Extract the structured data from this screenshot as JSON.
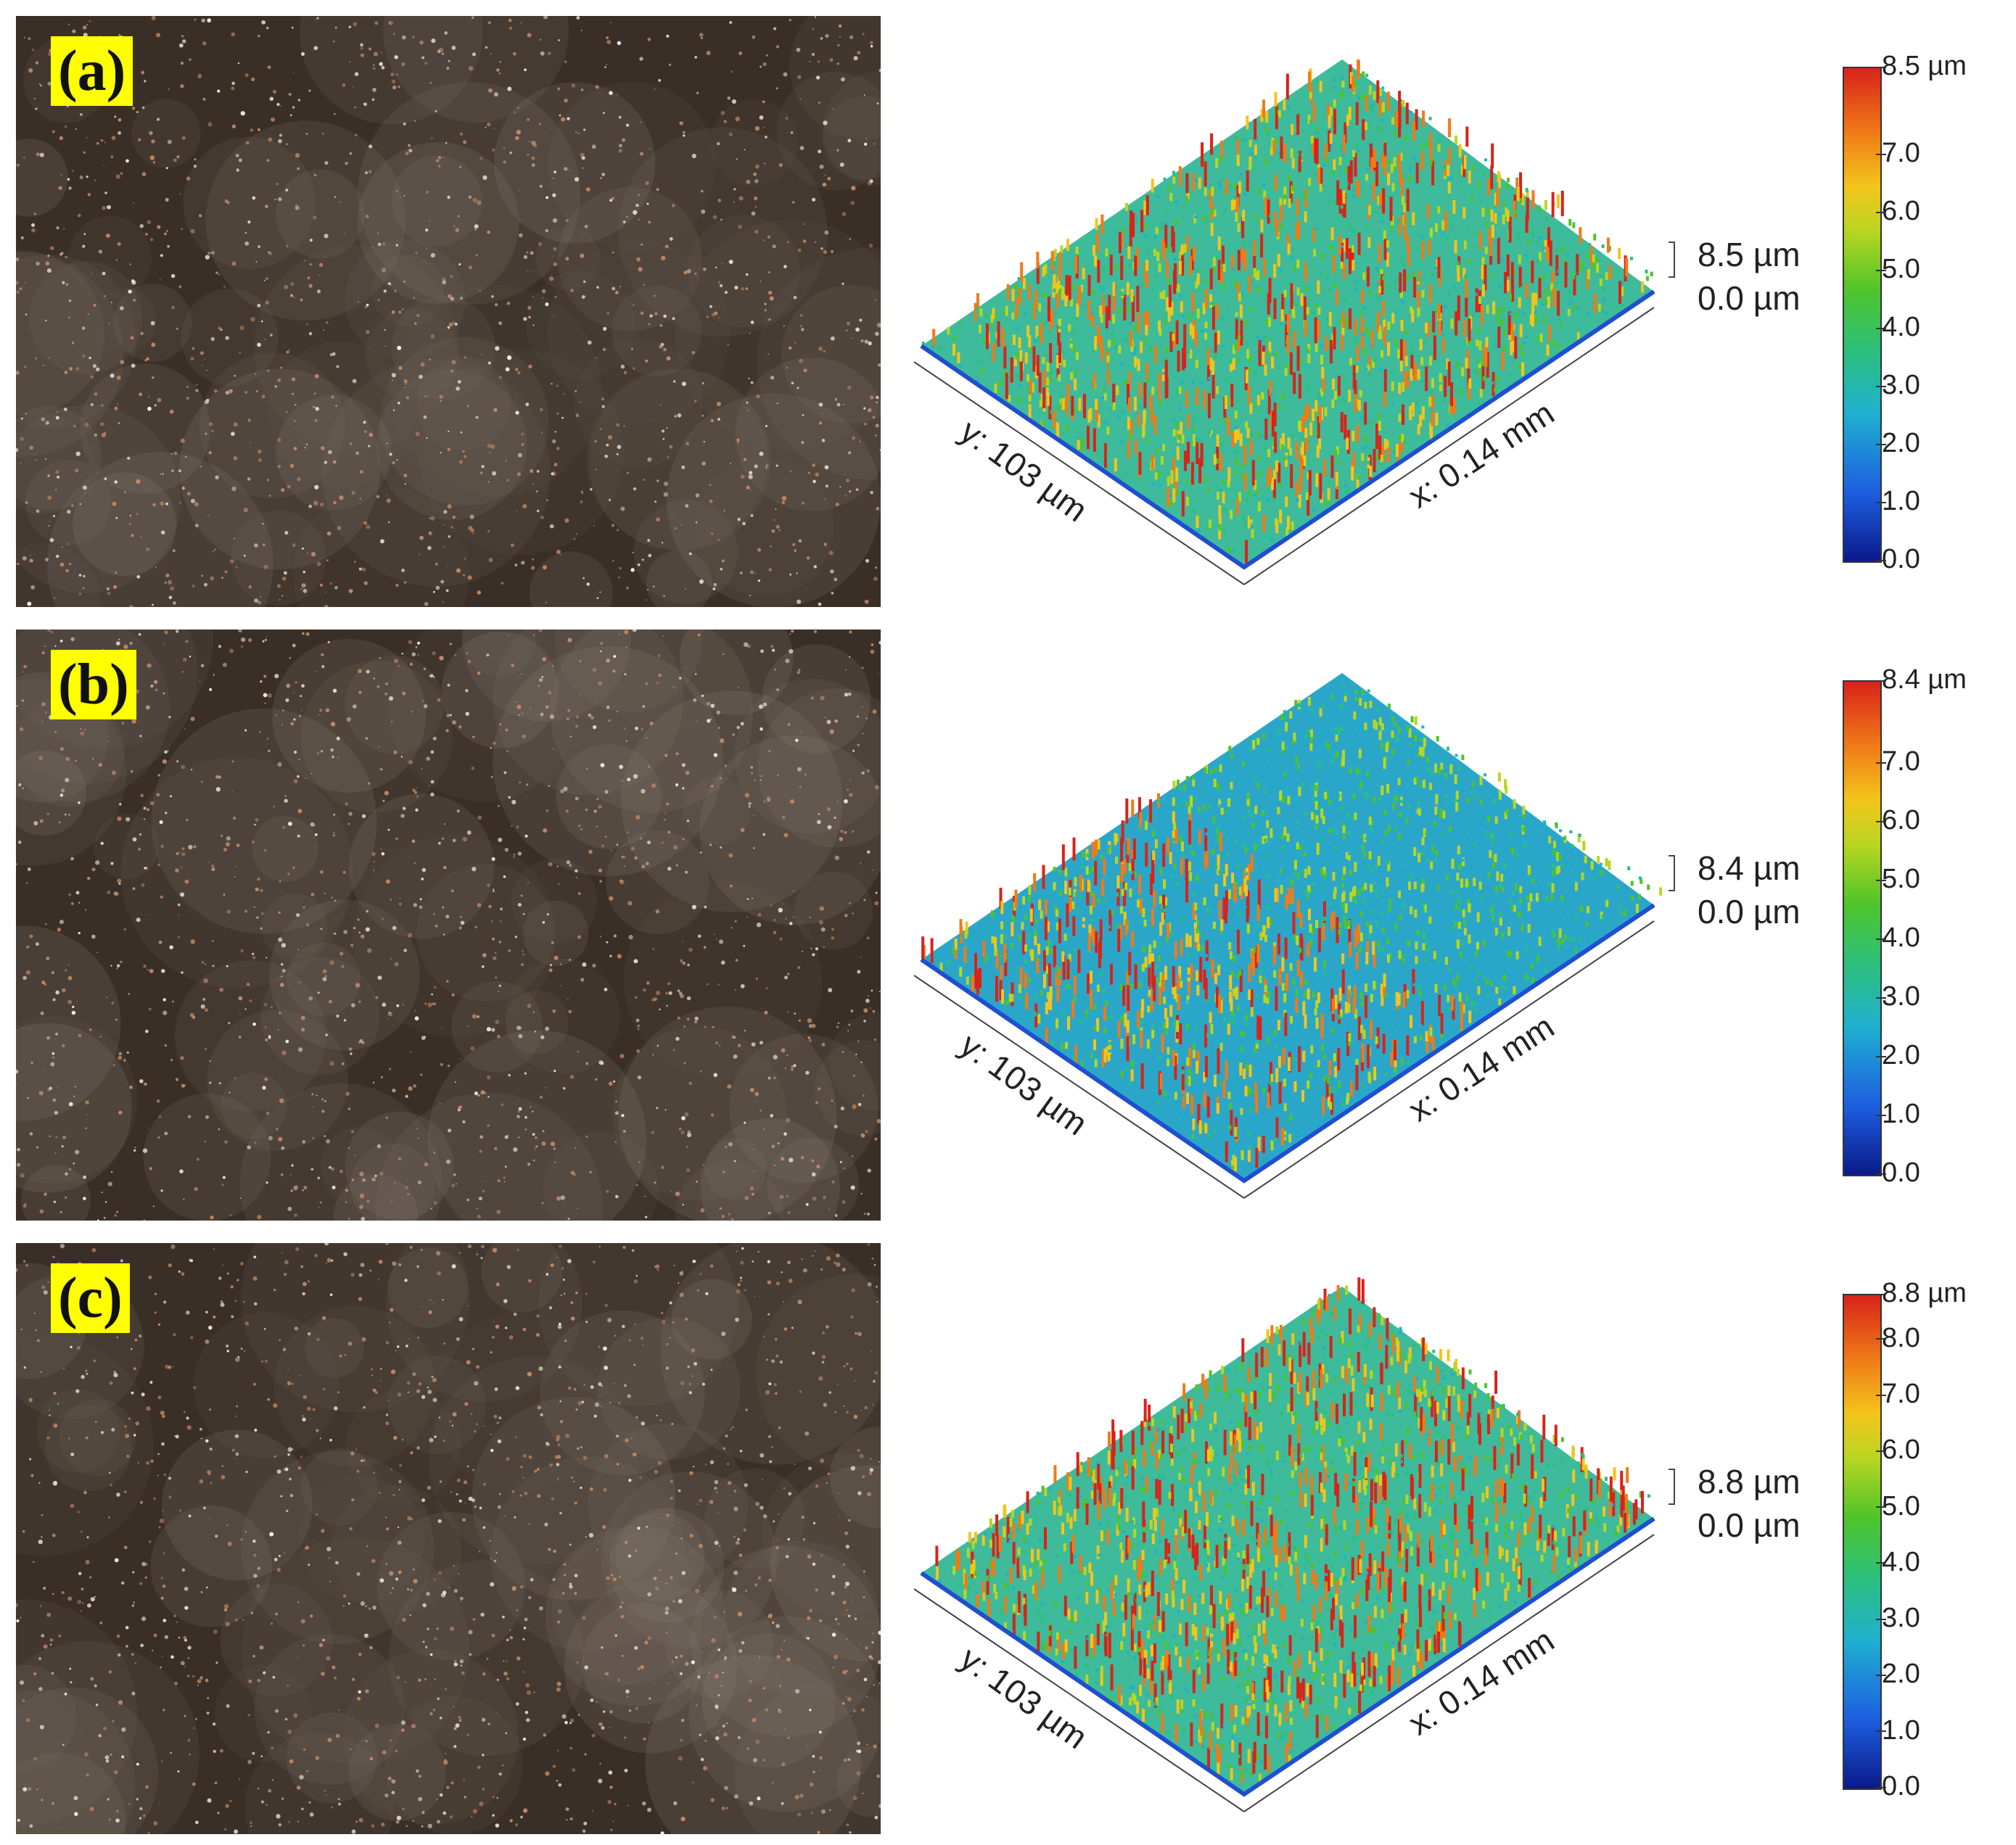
{
  "panels": [
    {
      "label": "(a)",
      "surface": {
        "y_axis": "y: 103 µm",
        "x_axis": "x: 0.14 mm",
        "z_top": "8.5 µm",
        "z_bottom": "0.0 µm"
      },
      "colorbar": {
        "ticks": [
          "8.5 µm",
          "7.0",
          "6.0",
          "5.0",
          "4.0",
          "3.0",
          "2.0",
          "1.0",
          "0.0"
        ],
        "min": 0.0,
        "max": 8.5
      }
    },
    {
      "label": "(b)",
      "surface": {
        "y_axis": "y: 103 µm",
        "x_axis": "x: 0.14 mm",
        "z_top": "8.4 µm",
        "z_bottom": "0.0 µm"
      },
      "colorbar": {
        "ticks": [
          "8.4 µm",
          "7.0",
          "6.0",
          "5.0",
          "4.0",
          "3.0",
          "2.0",
          "1.0",
          "0.0"
        ],
        "min": 0.0,
        "max": 8.4
      }
    },
    {
      "label": "(c)",
      "surface": {
        "y_axis": "y: 103 µm",
        "x_axis": "x: 0.14 mm",
        "z_top": "8.8 µm",
        "z_bottom": "0.0 µm"
      },
      "colorbar": {
        "ticks": [
          "8.8 µm",
          "8.0",
          "7.0",
          "6.0",
          "5.0",
          "4.0",
          "3.0",
          "2.0",
          "1.0",
          "0.0"
        ],
        "min": 0.0,
        "max": 8.8
      }
    }
  ],
  "colors": {
    "label_bg": "#ffff00",
    "photo_base": "#3a2f26",
    "colormap": [
      "#0a1a8a",
      "#1d5ee0",
      "#1fb0d0",
      "#2cc07a",
      "#4fc42a",
      "#b9d621",
      "#f3c51b",
      "#f07a18",
      "#d8231a"
    ]
  }
}
